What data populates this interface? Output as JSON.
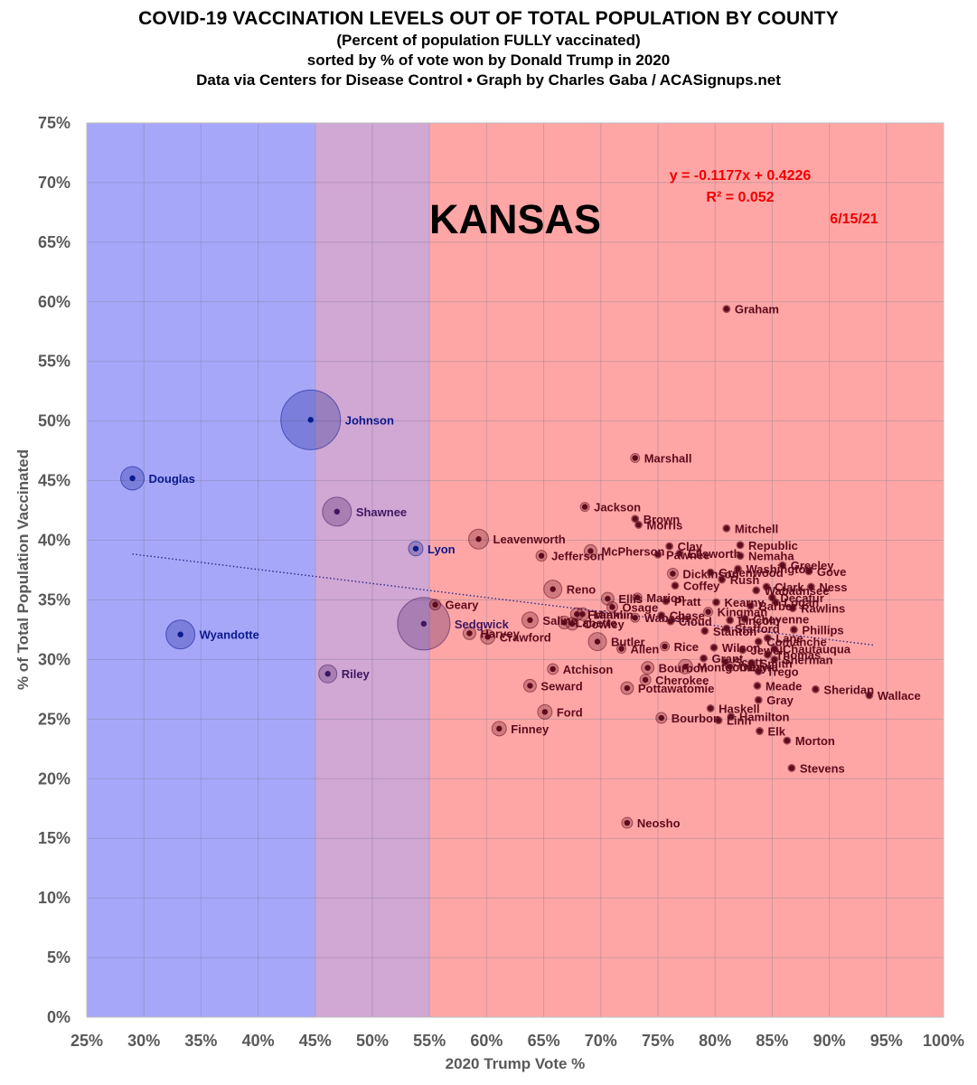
{
  "title": "COVID-19 VACCINATION LEVELS OUT OF TOTAL POPULATION BY COUNTY",
  "subtitle_lines": [
    "(Percent of population FULLY vaccinated)",
    "sorted by % of vote won by Donald Trump in 2020",
    "Data via Centers for Disease Control • Graph by Charles Gaba / ACASignups.net"
  ],
  "chart_data": {
    "type": "scatter",
    "state_label": "KANSAS",
    "date_label": "6/15/21",
    "equation": "y = -0.1177x + 0.4226",
    "r_squared": "R² = 0.052",
    "trendline": {
      "slope": -0.1177,
      "intercept": 0.4226,
      "x_range": [
        29,
        94
      ]
    },
    "xlabel": "2020 Trump Vote %",
    "ylabel": "% of Total Population Vaccinated",
    "xlim": [
      25,
      100
    ],
    "ylim": [
      0,
      75
    ],
    "x_ticks": [
      "25%",
      "30%",
      "35%",
      "40%",
      "45%",
      "50%",
      "55%",
      "60%",
      "65%",
      "70%",
      "75%",
      "80%",
      "85%",
      "90%",
      "95%",
      "100%"
    ],
    "y_ticks": [
      "0%",
      "5%",
      "10%",
      "15%",
      "20%",
      "25%",
      "30%",
      "35%",
      "40%",
      "45%",
      "50%",
      "55%",
      "60%",
      "65%",
      "70%",
      "75%"
    ],
    "background_bands": [
      {
        "from": 25,
        "to": 45,
        "color": "#a7a7fa"
      },
      {
        "from": 45,
        "to": 55,
        "color": "#d1a7d3"
      },
      {
        "from": 55,
        "to": 100,
        "color": "#fea6a6"
      }
    ],
    "colors": {
      "blue": "#0b1a8c",
      "purple": "#3d1760",
      "red": "#5e0b1c",
      "trend": "#2a2a8a",
      "annotation": "#ee0000"
    },
    "points": [
      {
        "name": "Johnson",
        "x": 44.6,
        "y": 50.1,
        "color": "blue",
        "size": 33
      },
      {
        "name": "Douglas",
        "x": 29.0,
        "y": 45.2,
        "color": "blue",
        "size": 13
      },
      {
        "name": "Wyandotte",
        "x": 33.2,
        "y": 32.1,
        "color": "blue",
        "size": 16
      },
      {
        "name": "Lyon",
        "x": 53.8,
        "y": 39.3,
        "color": "blue",
        "size": 8
      },
      {
        "name": "Shawnee",
        "x": 46.9,
        "y": 42.4,
        "color": "purple",
        "size": 16
      },
      {
        "name": "Riley",
        "x": 46.1,
        "y": 28.8,
        "color": "purple",
        "size": 10
      },
      {
        "name": "Sedgwick",
        "x": 54.5,
        "y": 33.0,
        "color": "purple",
        "size": 29
      },
      {
        "name": "Graham",
        "x": 81.0,
        "y": 59.4,
        "color": "red",
        "size": 4
      },
      {
        "name": "Marshall",
        "x": 73.0,
        "y": 46.9,
        "color": "red",
        "size": 5
      },
      {
        "name": "Jackson",
        "x": 68.6,
        "y": 42.8,
        "color": "red",
        "size": 5
      },
      {
        "name": "Brown",
        "x": 73.0,
        "y": 41.8,
        "color": "red",
        "size": 4
      },
      {
        "name": "Morris",
        "x": 73.3,
        "y": 41.3,
        "color": "red",
        "size": 4
      },
      {
        "name": "Mitchell",
        "x": 81.0,
        "y": 41.0,
        "color": "red",
        "size": 4
      },
      {
        "name": "Leavenworth",
        "x": 59.3,
        "y": 40.1,
        "color": "red",
        "size": 11
      },
      {
        "name": "Jefferson",
        "x": 64.8,
        "y": 38.7,
        "color": "red",
        "size": 6
      },
      {
        "name": "McPherson",
        "x": 69.1,
        "y": 39.1,
        "color": "red",
        "size": 7
      },
      {
        "name": "Clay",
        "x": 76.0,
        "y": 39.5,
        "color": "red",
        "size": 4
      },
      {
        "name": "Ellsworth",
        "x": 76.9,
        "y": 38.9,
        "color": "red",
        "size": 4
      },
      {
        "name": "Pawnee",
        "x": 75.0,
        "y": 38.8,
        "color": "red",
        "size": 4
      },
      {
        "name": "Republic",
        "x": 82.2,
        "y": 39.6,
        "color": "red",
        "size": 4
      },
      {
        "name": "Nemaha",
        "x": 82.2,
        "y": 38.7,
        "color": "red",
        "size": 4
      },
      {
        "name": "Greeley",
        "x": 85.9,
        "y": 37.9,
        "color": "red",
        "size": 4
      },
      {
        "name": "Dickinson",
        "x": 76.3,
        "y": 37.2,
        "color": "red",
        "size": 6
      },
      {
        "name": "Greenwood",
        "x": 79.6,
        "y": 37.3,
        "color": "red",
        "size": 4
      },
      {
        "name": "Washington",
        "x": 82.0,
        "y": 37.6,
        "color": "red",
        "size": 4
      },
      {
        "name": "Gove",
        "x": 88.2,
        "y": 37.4,
        "color": "red",
        "size": 4
      },
      {
        "name": "Rush",
        "x": 80.6,
        "y": 36.7,
        "color": "red",
        "size": 4
      },
      {
        "name": "Coffey",
        "x": 76.5,
        "y": 36.2,
        "color": "red",
        "size": 4
      },
      {
        "name": "Reno",
        "x": 65.8,
        "y": 35.9,
        "color": "red",
        "size": 10
      },
      {
        "name": "Clark",
        "x": 84.5,
        "y": 36.1,
        "color": "red",
        "size": 4
      },
      {
        "name": "Ness",
        "x": 88.4,
        "y": 36.1,
        "color": "red",
        "size": 4
      },
      {
        "name": "Wabaunsee",
        "x": 83.6,
        "y": 35.8,
        "color": "red",
        "size": 4
      },
      {
        "name": "Ellis",
        "x": 70.6,
        "y": 35.1,
        "color": "red",
        "size": 7
      },
      {
        "name": "Marion",
        "x": 73.2,
        "y": 35.2,
        "color": "red",
        "size": 5
      },
      {
        "name": "Decatur",
        "x": 85.0,
        "y": 35.2,
        "color": "red",
        "size": 4
      },
      {
        "name": "Pratt",
        "x": 75.7,
        "y": 34.9,
        "color": "red",
        "size": 4
      },
      {
        "name": "Kearny",
        "x": 80.1,
        "y": 34.8,
        "color": "red",
        "size": 4
      },
      {
        "name": "Barber",
        "x": 83.1,
        "y": 34.5,
        "color": "red",
        "size": 4
      },
      {
        "name": "Logan",
        "x": 85.3,
        "y": 34.8,
        "color": "red",
        "size": 4
      },
      {
        "name": "Rawlins",
        "x": 86.8,
        "y": 34.3,
        "color": "red",
        "size": 4
      },
      {
        "name": "Geary",
        "x": 55.5,
        "y": 34.6,
        "color": "red",
        "size": 6
      },
      {
        "name": "Osage",
        "x": 71.0,
        "y": 34.4,
        "color": "red",
        "size": 6
      },
      {
        "name": "Kingman",
        "x": 79.4,
        "y": 34.0,
        "color": "red",
        "size": 5
      },
      {
        "name": "Franklin",
        "x": 67.9,
        "y": 33.8,
        "color": "red",
        "size": 7
      },
      {
        "name": "Miami",
        "x": 68.4,
        "y": 33.8,
        "color": "red",
        "size": 7
      },
      {
        "name": "Chase",
        "x": 75.3,
        "y": 33.7,
        "color": "red",
        "size": 4
      },
      {
        "name": "Wabash",
        "x": 73.0,
        "y": 33.5,
        "color": "red",
        "size": 5
      },
      {
        "name": "Cheyenne",
        "x": 82.6,
        "y": 33.4,
        "color": "red",
        "size": 4
      },
      {
        "name": "Saline",
        "x": 63.8,
        "y": 33.3,
        "color": "red",
        "size": 9
      },
      {
        "name": "Labette",
        "x": 66.8,
        "y": 33.1,
        "color": "red",
        "size": 7
      },
      {
        "name": "Cowley",
        "x": 67.5,
        "y": 33.0,
        "color": "red",
        "size": 7
      },
      {
        "name": "Cloud",
        "x": 76.1,
        "y": 33.2,
        "color": "red",
        "size": 4
      },
      {
        "name": "Lincoln",
        "x": 81.3,
        "y": 33.3,
        "color": "red",
        "size": 4
      },
      {
        "name": "Stanton",
        "x": 79.1,
        "y": 32.4,
        "color": "red",
        "size": 4
      },
      {
        "name": "Stafford",
        "x": 81.0,
        "y": 32.6,
        "color": "red",
        "size": 4
      },
      {
        "name": "Phillips",
        "x": 86.9,
        "y": 32.5,
        "color": "red",
        "size": 4
      },
      {
        "name": "Harvey",
        "x": 58.5,
        "y": 32.2,
        "color": "red",
        "size": 7
      },
      {
        "name": "Crawford",
        "x": 60.1,
        "y": 31.9,
        "color": "red",
        "size": 8
      },
      {
        "name": "Lane",
        "x": 84.6,
        "y": 31.8,
        "color": "red",
        "size": 4
      },
      {
        "name": "Butler",
        "x": 69.7,
        "y": 31.5,
        "color": "red",
        "size": 10
      },
      {
        "name": "Comanche",
        "x": 83.8,
        "y": 31.5,
        "color": "red",
        "size": 4
      },
      {
        "name": "Rice",
        "x": 75.6,
        "y": 31.1,
        "color": "red",
        "size": 5
      },
      {
        "name": "Allen",
        "x": 71.8,
        "y": 30.9,
        "color": "red",
        "size": 5
      },
      {
        "name": "Wilson",
        "x": 79.9,
        "y": 31.0,
        "color": "red",
        "size": 4
      },
      {
        "name": "Chautauqua",
        "x": 85.2,
        "y": 30.9,
        "color": "red",
        "size": 4
      },
      {
        "name": "Jewell",
        "x": 82.4,
        "y": 30.8,
        "color": "red",
        "size": 4
      },
      {
        "name": "Thomas",
        "x": 84.6,
        "y": 30.4,
        "color": "red",
        "size": 4
      },
      {
        "name": "Sherman",
        "x": 85.2,
        "y": 30.0,
        "color": "red",
        "size": 4
      },
      {
        "name": "Grant",
        "x": 79.0,
        "y": 30.1,
        "color": "red",
        "size": 4
      },
      {
        "name": "Smith",
        "x": 83.2,
        "y": 29.7,
        "color": "red",
        "size": 4
      },
      {
        "name": "Scott",
        "x": 80.9,
        "y": 29.8,
        "color": "red",
        "size": 4
      },
      {
        "name": "Ottawa",
        "x": 81.3,
        "y": 29.4,
        "color": "red",
        "size": 5
      },
      {
        "name": "Atchison",
        "x": 65.8,
        "y": 29.2,
        "color": "red",
        "size": 6
      },
      {
        "name": "Montgomery",
        "x": 77.4,
        "y": 29.4,
        "color": "red",
        "size": 8
      },
      {
        "name": "Bourbon",
        "x": 74.1,
        "y": 29.3,
        "color": "red",
        "size": 7
      },
      {
        "name": "Trego",
        "x": 83.8,
        "y": 29.0,
        "color": "red",
        "size": 4
      },
      {
        "name": "Cherokee",
        "x": 73.9,
        "y": 28.3,
        "color": "red",
        "size": 6
      },
      {
        "name": "Seward",
        "x": 63.8,
        "y": 27.8,
        "color": "red",
        "size": 7
      },
      {
        "name": "Meade",
        "x": 83.7,
        "y": 27.8,
        "color": "red",
        "size": 4
      },
      {
        "name": "Sheridan",
        "x": 88.8,
        "y": 27.5,
        "color": "red",
        "size": 4
      },
      {
        "name": "Pottawatomie",
        "x": 72.3,
        "y": 27.6,
        "color": "red",
        "size": 7
      },
      {
        "name": "Wallace",
        "x": 93.5,
        "y": 27.0,
        "color": "red",
        "size": 4
      },
      {
        "name": "Gray",
        "x": 83.8,
        "y": 26.6,
        "color": "red",
        "size": 4
      },
      {
        "name": "Haskell",
        "x": 79.6,
        "y": 25.9,
        "color": "red",
        "size": 4
      },
      {
        "name": "Ford",
        "x": 65.1,
        "y": 25.6,
        "color": "red",
        "size": 8
      },
      {
        "name": "Hamilton",
        "x": 81.4,
        "y": 25.2,
        "color": "red",
        "size": 4
      },
      {
        "name": "Bourbon",
        "x": 75.3,
        "y": 25.1,
        "color": "red",
        "size": 6
      },
      {
        "name": "Linn",
        "x": 80.3,
        "y": 24.9,
        "color": "red",
        "size": 4
      },
      {
        "name": "Finney",
        "x": 61.1,
        "y": 24.2,
        "color": "red",
        "size": 8
      },
      {
        "name": "Elk",
        "x": 83.9,
        "y": 24.0,
        "color": "red",
        "size": 4
      },
      {
        "name": "Morton",
        "x": 86.3,
        "y": 23.2,
        "color": "red",
        "size": 4
      },
      {
        "name": "Stevens",
        "x": 86.7,
        "y": 20.9,
        "color": "red",
        "size": 4
      },
      {
        "name": "Neosho",
        "x": 72.3,
        "y": 16.3,
        "color": "red",
        "size": 6
      }
    ]
  }
}
